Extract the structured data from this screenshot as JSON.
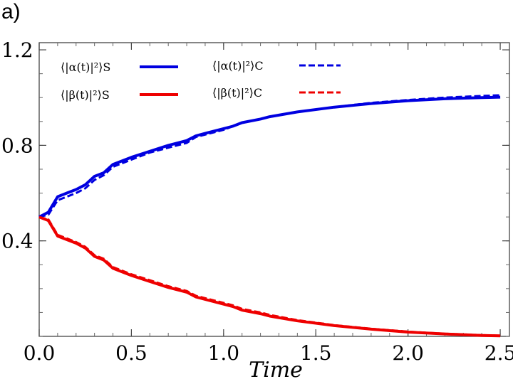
{
  "panel_label": "a)",
  "chart_data": {
    "type": "line",
    "title": "",
    "xlabel": "Time",
    "ylabel": "",
    "xlim": [
      0,
      2.55
    ],
    "ylim": [
      0.0,
      1.23
    ],
    "x_ticks": [
      0.0,
      0.5,
      1.0,
      1.5,
      2.0,
      2.5
    ],
    "x_tick_labels": [
      "0.0",
      "0.5",
      "1.0",
      "1.5",
      "2.0",
      "2.5"
    ],
    "x_minor_step": 0.1,
    "y_ticks": [
      0.4,
      0.8,
      1.2
    ],
    "y_tick_labels": [
      "0.4",
      "0.8",
      "1.2"
    ],
    "y_minor_step": 0.1,
    "grid": false,
    "legend_position": "top-left",
    "series": [
      {
        "name": "⟨|α(t)|²⟩S",
        "color": "#0000e0",
        "style": "solid",
        "x": [
          0,
          0.05,
          0.1,
          0.15,
          0.2,
          0.25,
          0.3,
          0.35,
          0.4,
          0.5,
          0.6,
          0.7,
          0.8,
          0.85,
          0.9,
          1.0,
          1.05,
          1.1,
          1.2,
          1.25,
          1.4,
          1.6,
          1.8,
          2.0,
          2.2,
          2.4,
          2.5
        ],
        "y": [
          0.5,
          0.52,
          0.585,
          0.6,
          0.615,
          0.635,
          0.67,
          0.685,
          0.72,
          0.75,
          0.775,
          0.8,
          0.82,
          0.84,
          0.85,
          0.87,
          0.88,
          0.895,
          0.91,
          0.92,
          0.94,
          0.96,
          0.975,
          0.987,
          0.995,
          1.0,
          1.002
        ]
      },
      {
        "name": "⟨|β(t)|²⟩S",
        "color": "#ee0000",
        "style": "solid",
        "x": [
          0,
          0.05,
          0.1,
          0.15,
          0.2,
          0.25,
          0.3,
          0.35,
          0.4,
          0.5,
          0.6,
          0.7,
          0.8,
          0.85,
          0.9,
          1.0,
          1.05,
          1.1,
          1.2,
          1.25,
          1.4,
          1.6,
          1.8,
          2.0,
          2.2,
          2.4,
          2.5
        ],
        "y": [
          0.5,
          0.485,
          0.42,
          0.405,
          0.39,
          0.37,
          0.335,
          0.32,
          0.285,
          0.255,
          0.23,
          0.205,
          0.185,
          0.165,
          0.155,
          0.135,
          0.125,
          0.11,
          0.095,
          0.085,
          0.065,
          0.045,
          0.03,
          0.018,
          0.01,
          0.004,
          0.002
        ]
      },
      {
        "name": "⟨|α(t)|²⟩C",
        "color": "#0000e0",
        "style": "dashed",
        "x": [
          0,
          0.05,
          0.1,
          0.15,
          0.2,
          0.25,
          0.3,
          0.35,
          0.4,
          0.5,
          0.6,
          0.7,
          0.8,
          0.85,
          0.9,
          1.0,
          1.05,
          1.1,
          1.2,
          1.25,
          1.4,
          1.6,
          1.8,
          2.0,
          2.2,
          2.4,
          2.5
        ],
        "y": [
          0.5,
          0.51,
          0.57,
          0.585,
          0.6,
          0.62,
          0.655,
          0.675,
          0.71,
          0.74,
          0.77,
          0.79,
          0.81,
          0.835,
          0.845,
          0.865,
          0.88,
          0.895,
          0.91,
          0.92,
          0.94,
          0.96,
          0.978,
          0.99,
          1.0,
          1.007,
          1.01
        ]
      },
      {
        "name": "⟨|β(t)|²⟩C",
        "color": "#ee0000",
        "style": "dashed",
        "x": [
          0,
          0.05,
          0.1,
          0.15,
          0.2,
          0.25,
          0.3,
          0.35,
          0.4,
          0.5,
          0.6,
          0.7,
          0.8,
          0.85,
          0.9,
          1.0,
          1.05,
          1.1,
          1.2,
          1.25,
          1.4,
          1.6,
          1.8,
          2.0,
          2.2,
          2.4,
          2.5
        ],
        "y": [
          0.5,
          0.49,
          0.425,
          0.41,
          0.395,
          0.375,
          0.34,
          0.325,
          0.29,
          0.26,
          0.235,
          0.21,
          0.19,
          0.17,
          0.16,
          0.14,
          0.13,
          0.115,
          0.1,
          0.09,
          0.068,
          0.047,
          0.032,
          0.02,
          0.011,
          0.005,
          0.003
        ]
      }
    ]
  }
}
